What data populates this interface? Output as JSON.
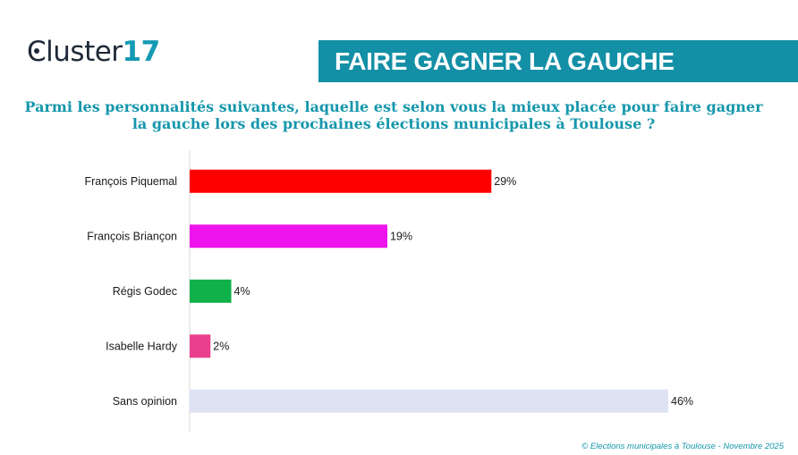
{
  "logo": {
    "text_prefix": "C",
    "text_main": "luster",
    "text_number": "17"
  },
  "banner": {
    "title": "FAIRE GAGNER LA GAUCHE"
  },
  "question": {
    "line1": "Parmi les personnalités suivantes, laquelle est selon vous la mieux placée pour faire gagner",
    "line2": "la gauche lors des prochaines élections municipales à Toulouse ?"
  },
  "footer": {
    "text": "© Elections municipales à Toulouse - Novembre 2025"
  },
  "chart_data": {
    "type": "bar",
    "orientation": "horizontal",
    "title": "Parmi les personnalités suivantes, laquelle est selon vous la mieux placée pour faire gagner la gauche lors des prochaines élections municipales à Toulouse ?",
    "categories": [
      "François Piquemal",
      "François Briançon",
      "Régis Godec",
      "Isabelle Hardy",
      "Sans opinion"
    ],
    "values": [
      29,
      19,
      4,
      2,
      46
    ],
    "labels": [
      "29%",
      "19%",
      "4%",
      "2%",
      "46%"
    ],
    "colors": [
      "#ff0000",
      "#ee14ee",
      "#10b04a",
      "#ea3f8d",
      "#dde3f3"
    ],
    "unit": "%",
    "xlim": [
      0,
      46
    ],
    "xlabel": "",
    "ylabel": "",
    "grid": false
  }
}
